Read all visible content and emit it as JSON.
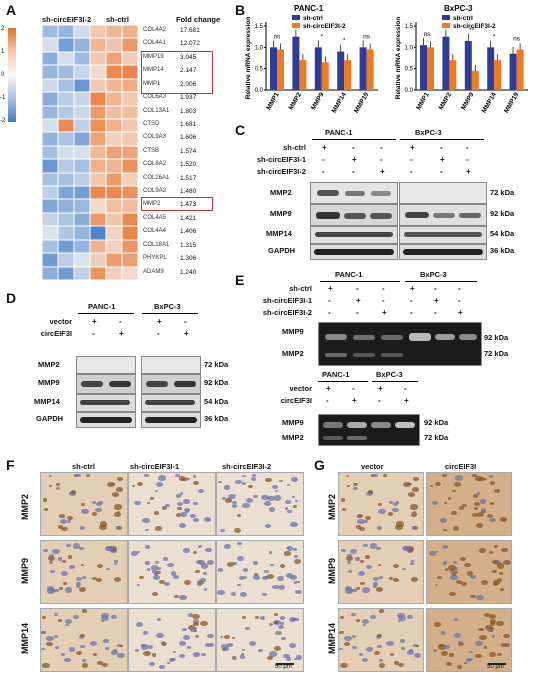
{
  "panelA": {
    "letter": "A",
    "col1": "sh-circEIF3I-2",
    "col2": "sh-ctrl",
    "col3": "Fold change",
    "scale": [
      "2",
      "1",
      "0",
      "-1",
      "-2"
    ],
    "genes": [
      "COL4A2",
      "COL4A1",
      "MMP19",
      "MMP14",
      "MMP1",
      "COL6A3",
      "COL13A1",
      "CTSD",
      "COL9A3",
      "CTSB",
      "COL8A2",
      "COL26A1",
      "COL9A2",
      "MMP2",
      "COL4A5",
      "COL4A4",
      "COL18A1",
      "PHYKPL",
      "ADAM9"
    ],
    "fold": [
      "17.681",
      "12.072",
      "3.045",
      "2.147",
      "2.006",
      "1.937",
      "1.803",
      "1.681",
      "1.606",
      "1.574",
      "1.520",
      "1.517",
      "1.480",
      "1.473",
      "1.421",
      "1.406",
      "1.315",
      "1.306",
      "1.240"
    ]
  },
  "panelB": {
    "letter": "B",
    "ylabel": "Relative mRNA expression",
    "legend": [
      "sh-ctrl",
      "sh-circEIF3I-2"
    ],
    "colors": {
      "ctrl": "#2e3c96",
      "sh": "#f07a1f"
    },
    "charts": [
      {
        "title": "PANC-1",
        "categories": [
          "MMP1",
          "MMP2",
          "MMP9",
          "MMP14",
          "MMP19"
        ],
        "ctrl": [
          1.0,
          1.25,
          1.0,
          0.9,
          1.0
        ],
        "sh": [
          0.95,
          0.7,
          0.65,
          0.7,
          0.95
        ],
        "sig": [
          "ns",
          "*",
          "*",
          "*",
          "ns"
        ],
        "yticks": [
          "0.0",
          "0.5",
          "1.0",
          "1.5"
        ]
      },
      {
        "title": "BxPC-3",
        "categories": [
          "MMP1",
          "MMP2",
          "MMP9",
          "MMP14",
          "MMP19"
        ],
        "ctrl": [
          1.05,
          1.25,
          1.15,
          1.0,
          0.85
        ],
        "sh": [
          1.0,
          0.7,
          0.45,
          0.7,
          0.95
        ],
        "sig": [
          "ns",
          "*",
          "**",
          "*",
          "ns"
        ],
        "yticks": [
          "0.0",
          "0.5",
          "1.0",
          "1.5"
        ]
      }
    ]
  },
  "panelC": {
    "letter": "C",
    "cells": [
      "PANC-1",
      "BxPC-3"
    ],
    "rows": [
      "sh-ctrl",
      "sh-circEIF3I-1",
      "sh-circEIF3I-2"
    ],
    "signs": [
      [
        "+",
        "-",
        "-",
        "+",
        "-",
        "-"
      ],
      [
        "-",
        "+",
        "-",
        "-",
        "+",
        "-"
      ],
      [
        "-",
        "-",
        "+",
        "-",
        "-",
        "+"
      ]
    ],
    "bands": [
      "MMP2",
      "MMP9",
      "MMP14",
      "GAPDH"
    ],
    "kda": [
      "72 kDa",
      "92 kDa",
      "54 kDa",
      "36 kDa"
    ]
  },
  "panelD": {
    "letter": "D",
    "cells": [
      "PANC-1",
      "BxPC-3"
    ],
    "rows": [
      "vector",
      "circEIF3I"
    ],
    "signs": [
      [
        "+",
        "-",
        "+",
        "-"
      ],
      [
        "-",
        "+",
        "-",
        "+"
      ]
    ],
    "bands": [
      "MMP2",
      "MMP9",
      "MMP14",
      "GAPDH"
    ],
    "kda": [
      "72 kDa",
      "92 kDa",
      "54 kDa",
      "36 kDa"
    ]
  },
  "panelE": {
    "letter": "E",
    "cells": [
      "PANC-1",
      "BxPC-3"
    ],
    "rows": [
      "sh-ctrl",
      "sh-circEIF3I-1",
      "sh-circEIF3I-2"
    ],
    "signs": [
      [
        "+",
        "-",
        "-",
        "+",
        "-",
        "-"
      ],
      [
        "-",
        "+",
        "-",
        "-",
        "+",
        "-"
      ],
      [
        "-",
        "-",
        "+",
        "-",
        "-",
        "+"
      ]
    ],
    "bands": [
      "MMP9",
      "MMP2"
    ],
    "kda": [
      "92 kDa",
      "72 kDa"
    ],
    "rows2": [
      "vector",
      "circEIF3I"
    ],
    "signs2": [
      [
        "+",
        "-",
        "+",
        "-"
      ],
      [
        "-",
        "+",
        "-",
        "+"
      ]
    ]
  },
  "panelF": {
    "letter": "F",
    "cols": [
      "sh-ctrl",
      "sh-circEIF3I-1",
      "sh-circEIF3I-2"
    ],
    "rows": [
      "MMP2",
      "MMP9",
      "MMP14"
    ],
    "scale": "50 μm"
  },
  "panelG": {
    "letter": "G",
    "cols": [
      "vector",
      "circEIF3I"
    ],
    "rows": [
      "MMP2",
      "MMP9",
      "MMP14"
    ],
    "scale": "50 μm"
  }
}
